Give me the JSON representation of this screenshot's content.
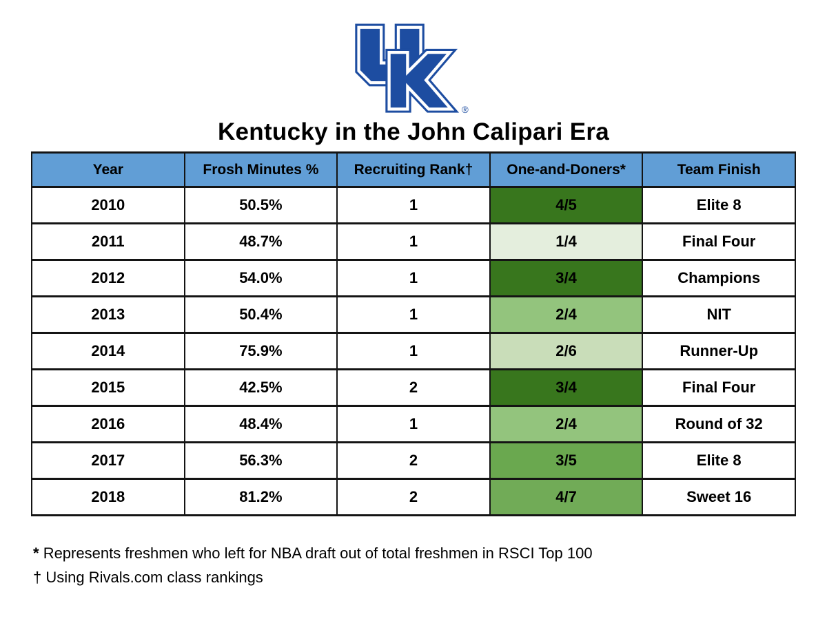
{
  "title": "Kentucky in the John Calipari Era",
  "logo": {
    "name": "kentucky-interlocking-uk-logo",
    "registered_mark": "®"
  },
  "chart_data": {
    "type": "table",
    "title": "Kentucky in the John Calipari Era",
    "columns": [
      "Year",
      "Frosh Minutes %",
      "Recruiting Rank†",
      "One-and-Doners*",
      "Team Finish"
    ],
    "heatmap_column": "One-and-Doners*",
    "rows": [
      {
        "cells": [
          "2010",
          "50.5%",
          "1",
          "4/5",
          "Elite 8"
        ],
        "one_and_doners_bg": "#38761d"
      },
      {
        "cells": [
          "2011",
          "48.7%",
          "1",
          "1/4",
          "Final Four"
        ],
        "one_and_doners_bg": "#e4eedd"
      },
      {
        "cells": [
          "2012",
          "54.0%",
          "1",
          "3/4",
          "Champions"
        ],
        "one_and_doners_bg": "#38761d"
      },
      {
        "cells": [
          "2013",
          "50.4%",
          "1",
          "2/4",
          "NIT"
        ],
        "one_and_doners_bg": "#93c47d"
      },
      {
        "cells": [
          "2014",
          "75.9%",
          "1",
          "2/6",
          "Runner-Up"
        ],
        "one_and_doners_bg": "#c9ddb9"
      },
      {
        "cells": [
          "2015",
          "42.5%",
          "2",
          "3/4",
          "Final Four"
        ],
        "one_and_doners_bg": "#38761d"
      },
      {
        "cells": [
          "2016",
          "48.4%",
          "1",
          "2/4",
          "Round of 32"
        ],
        "one_and_doners_bg": "#93c47d"
      },
      {
        "cells": [
          "2017",
          "56.3%",
          "2",
          "3/5",
          "Elite 8"
        ],
        "one_and_doners_bg": "#6aa84f"
      },
      {
        "cells": [
          "2018",
          "81.2%",
          "2",
          "4/7",
          "Sweet 16"
        ],
        "one_and_doners_bg": "#71ab57"
      }
    ]
  },
  "footnotes": [
    {
      "marker": "*",
      "text": "Represents freshmen who left for NBA draft out of total freshmen in RSCI Top 100"
    },
    {
      "marker": "†",
      "text": "Using Rivals.com class rankings"
    }
  ],
  "colors": {
    "logo_blue": "#1d4da1",
    "header_bg": "#619ed6",
    "border": "#141414",
    "dark_green": "#38761d",
    "medium_dark_green": "#6aa84f",
    "medium_green": "#93c47d",
    "light_green": "#c9ddb9",
    "pale_green": "#e4eedd"
  }
}
